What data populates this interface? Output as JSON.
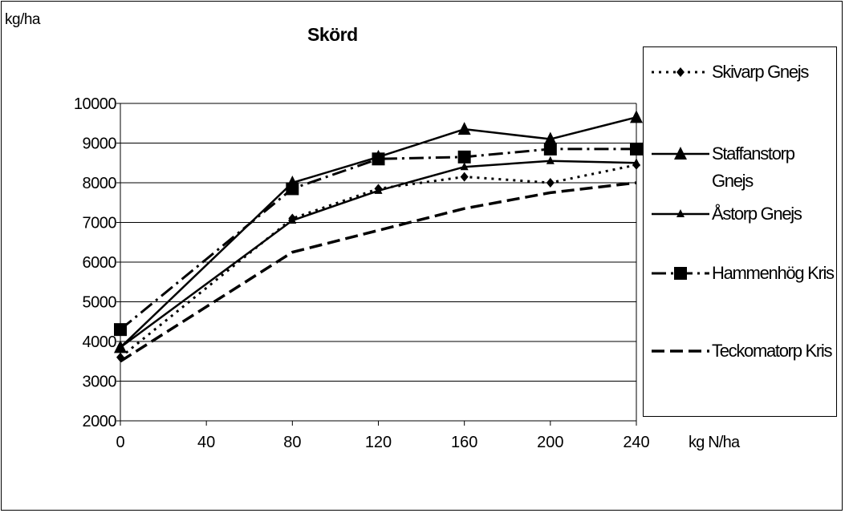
{
  "chart_data": {
    "type": "line",
    "title": "Skörd",
    "ylabel": "kg/ha",
    "xlabel": "kg N/ha",
    "x": [
      0,
      40,
      80,
      120,
      160,
      200,
      240
    ],
    "x_categories_shown": [
      0,
      40,
      80,
      120,
      160,
      200,
      240
    ],
    "ylim": [
      2000,
      10000
    ],
    "yticks": [
      2000,
      3000,
      4000,
      5000,
      6000,
      7000,
      8000,
      9000,
      10000
    ],
    "grid": true,
    "legend_position": "right",
    "series": [
      {
        "name": "Skivarp Gnejs",
        "style": "dotted",
        "marker": "diamond",
        "x": [
          0,
          80,
          120,
          160,
          200,
          240
        ],
        "values": [
          3600,
          7100,
          7850,
          8150,
          8000,
          8450
        ]
      },
      {
        "name": "Staffanstorp Gnejs",
        "style": "solid",
        "marker": "triangle-large",
        "x": [
          0,
          80,
          120,
          160,
          200,
          240
        ],
        "values": [
          3850,
          8000,
          8650,
          9350,
          9100,
          9650
        ]
      },
      {
        "name": "Åstorp Gnejs",
        "style": "solid",
        "marker": "triangle-small",
        "x": [
          0,
          80,
          120,
          160,
          200,
          240
        ],
        "values": [
          3850,
          7050,
          7800,
          8400,
          8550,
          8500
        ]
      },
      {
        "name": "Hammenhög Kris",
        "style": "dash-dot",
        "marker": "square",
        "x": [
          0,
          80,
          120,
          160,
          200,
          240
        ],
        "values": [
          4300,
          7850,
          8600,
          8650,
          8850,
          8850
        ]
      },
      {
        "name": "Teckomatorp Kris",
        "style": "dashed",
        "marker": "none",
        "x": [
          0,
          80,
          120,
          160,
          200,
          240
        ],
        "values": [
          3500,
          6250,
          6800,
          7350,
          7750,
          8000
        ]
      }
    ]
  },
  "colors": {
    "line": "#000000",
    "grid": "#000000",
    "background": "#ffffff"
  }
}
